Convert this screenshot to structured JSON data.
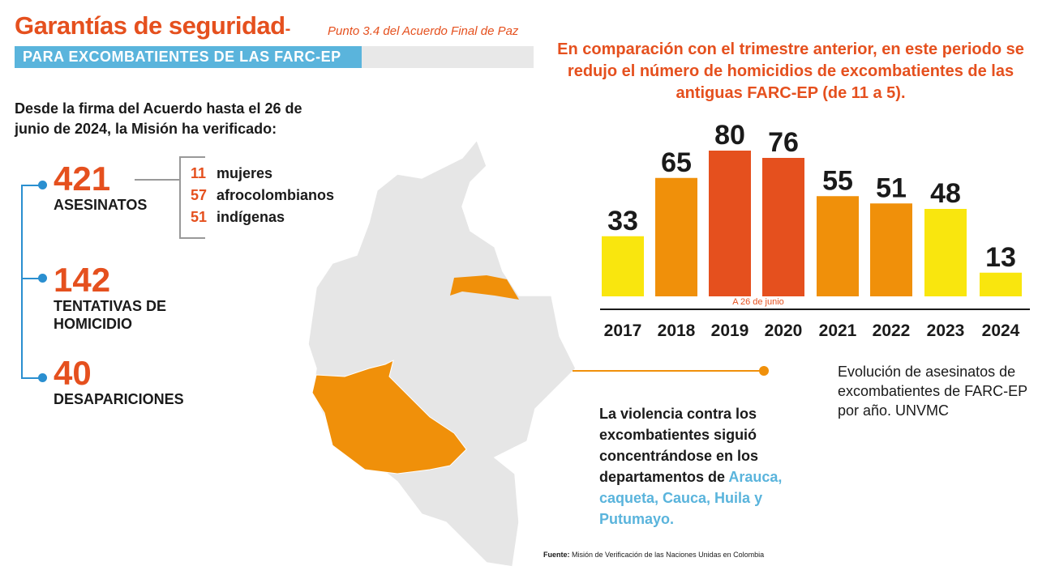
{
  "header": {
    "title": "Garantías de seguridad",
    "title_dash": "-",
    "subtitle": "Punto 3.4 del Acuerdo Final de Paz",
    "band": "PARA EXCOMBATIENTES DE LAS FARC-EP"
  },
  "intro": "Desde la firma del Acuerdo hasta el 26 de junio de 2024, la Misión ha verificado:",
  "stats": [
    {
      "value": "421",
      "label": "ASESINATOS"
    },
    {
      "value": "142",
      "label": "TENTATIVAS DE HOMICIDIO"
    },
    {
      "value": "40",
      "label": "DESAPARICIONES"
    }
  ],
  "breakdown": [
    {
      "value": "11",
      "label": "mujeres"
    },
    {
      "value": "57",
      "label": "afrocolombianos"
    },
    {
      "value": "51",
      "label": "indígenas"
    }
  ],
  "headline": "En comparación con el trimestre anterior, en este periodo se redujo el número de homicidios de excombatientes de las antiguas FARC-EP (de 11 a 5).",
  "chart_data": {
    "type": "bar",
    "categories": [
      "2017",
      "2018",
      "2019",
      "2020",
      "2021",
      "2022",
      "2023",
      "2024"
    ],
    "values": [
      33,
      65,
      80,
      76,
      55,
      51,
      48,
      13
    ],
    "colors": [
      "#f9e60e",
      "#f0900a",
      "#e5501e",
      "#e5501e",
      "#f0900a",
      "#f0900a",
      "#f9e60e",
      "#f9e60e"
    ],
    "annotation": "A 26 de junio",
    "ylim": [
      0,
      80
    ],
    "grid": false
  },
  "chart_note": "Evolución de asesinatos de excombatientes de FARC-EP por año. UNVMC",
  "violence": {
    "text": "La violencia contra los excombatientes siguió concentrándose en los departamentos de ",
    "highlight": "Arauca, caqueta, Cauca, Huila y Putumayo."
  },
  "source": {
    "label": "Fuente:",
    "text": "Misión de Verificación de las Naciones Unidas en Colombia"
  },
  "colors": {
    "accent": "#e5501e",
    "blue": "#5ab4dc",
    "orange": "#f0900a",
    "yellow": "#f9e60e",
    "map_gray": "#e6e6e6"
  }
}
